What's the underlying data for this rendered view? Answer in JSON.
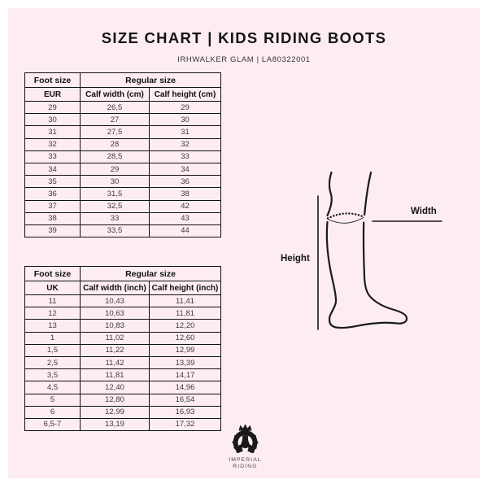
{
  "header": {
    "title": "SIZE CHART | KIDS RIDING BOOTS",
    "subtitle": "IRHWALKER GLAM | LA80322001"
  },
  "colors": {
    "background_pink": "#fdedf1",
    "table_border": "#111111",
    "text_primary": "#141414",
    "text_data": "#3c3c3c",
    "logo_black": "#1a1a1a"
  },
  "diagram": {
    "height_label": "Height",
    "width_label": "Width"
  },
  "logo": {
    "icon": "imperial-riding-horseshoe-crown-icon",
    "line1": "IMPERIAL",
    "line2": "RIDING"
  },
  "chart_data": [
    {
      "type": "table",
      "group_headers": [
        "Foot size",
        "Regular size"
      ],
      "columns": [
        "EUR",
        "Calf width (cm)",
        "Calf height (cm)"
      ],
      "rows": [
        [
          "29",
          "26,5",
          "29"
        ],
        [
          "30",
          "27",
          "30"
        ],
        [
          "31",
          "27,5",
          "31"
        ],
        [
          "32",
          "28",
          "32"
        ],
        [
          "33",
          "28,5",
          "33"
        ],
        [
          "34",
          "29",
          "34"
        ],
        [
          "35",
          "30",
          "36"
        ],
        [
          "36",
          "31,5",
          "38"
        ],
        [
          "37",
          "32,5",
          "42"
        ],
        [
          "38",
          "33",
          "43"
        ],
        [
          "39",
          "33,5",
          "44"
        ]
      ]
    },
    {
      "type": "table",
      "group_headers": [
        "Foot size",
        "Regular size"
      ],
      "columns": [
        "UK",
        "Calf width (inch)",
        "Calf height (inch)"
      ],
      "rows": [
        [
          "11",
          "10,43",
          "11,41"
        ],
        [
          "12",
          "10,63",
          "11,81"
        ],
        [
          "13",
          "10,83",
          "12,20"
        ],
        [
          "1",
          "11,02",
          "12,60"
        ],
        [
          "1,5",
          "11,22",
          "12,99"
        ],
        [
          "2,5",
          "11,42",
          "13,39"
        ],
        [
          "3,5",
          "11,81",
          "14,17"
        ],
        [
          "4,5",
          "12,40",
          "14,96"
        ],
        [
          "5",
          "12,80",
          "16,54"
        ],
        [
          "6",
          "12,99",
          "16,93"
        ],
        [
          "6,5-7",
          "13,19",
          "17,32"
        ]
      ]
    }
  ]
}
